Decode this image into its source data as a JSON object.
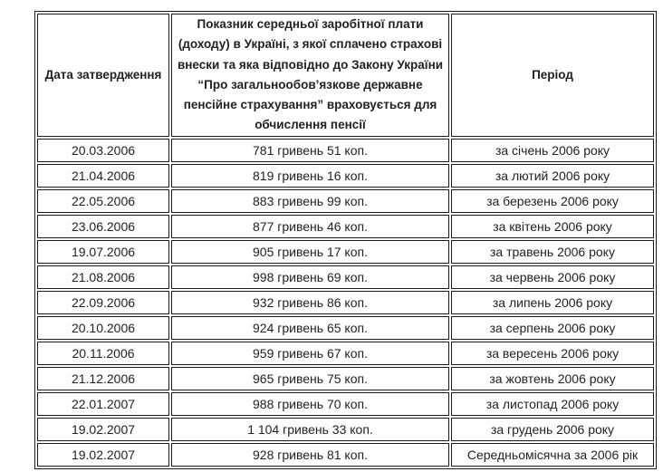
{
  "table": {
    "headers": [
      "Дата затвердження",
      "Показник середньої заробітної плати (доходу) в Україні, з якої сплачено страхові внески та яка відповідно до Закону України “Про загальнообов’язкове державне пенсійне страхування” враховується для обчислення пенсії",
      "Період"
    ],
    "rows": [
      {
        "date": "20.03.2006",
        "amount": "781 гривень 51 коп.",
        "period": "за січень 2006 року"
      },
      {
        "date": "21.04.2006",
        "amount": "819 гривень 16 коп.",
        "period": "за лютий 2006 року"
      },
      {
        "date": "22.05.2006",
        "amount": "883 гривень 99 коп.",
        "period": "за березень 2006 року"
      },
      {
        "date": "23.06.2006",
        "amount": "877 гривень 46 коп.",
        "period": "за квітень 2006 року"
      },
      {
        "date": "19.07.2006",
        "amount": "905 гривень 17 коп.",
        "period": "за травень 2006 року"
      },
      {
        "date": "21.08.2006",
        "amount": "998 гривень 69 коп.",
        "period": "за червень 2006 року"
      },
      {
        "date": "22.09.2006",
        "amount": "932 гривень 86 коп.",
        "period": "за липень 2006 року"
      },
      {
        "date": "20.10.2006",
        "amount": "924 гривень 65 коп.",
        "period": "за серпень 2006 року"
      },
      {
        "date": "20.11.2006",
        "amount": "959 гривень 67 коп.",
        "period": "за вересень 2006 року"
      },
      {
        "date": "21.12.2006",
        "amount": "965 гривень 75 коп.",
        "period": "за жовтень 2006 року"
      },
      {
        "date": "22.01.2007",
        "amount": "988 гривень 70 коп.",
        "period": "за листопад 2006 року"
      },
      {
        "date": "19.02.2007",
        "amount": "1 104 гривень 33 коп.",
        "period": "за грудень 2006 року"
      },
      {
        "date": "19.02.2007",
        "amount": "928 гривень 81 коп.",
        "period": "Середньомісячна за 2006 рік"
      }
    ]
  }
}
